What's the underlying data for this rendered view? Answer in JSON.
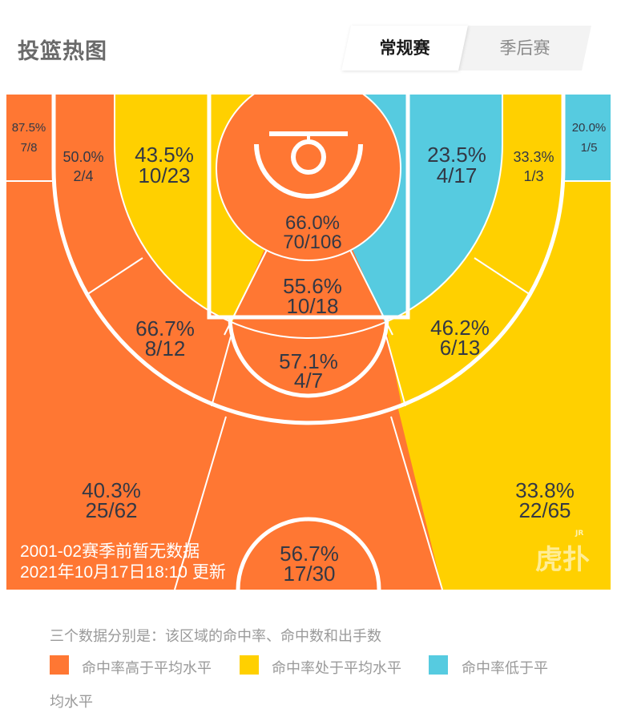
{
  "header": {
    "title": "投篮热图",
    "tabs": [
      {
        "label": "常规赛",
        "active": true
      },
      {
        "label": "季后赛",
        "active": false
      }
    ]
  },
  "colors": {
    "above": "#FF7733",
    "average": "#FFD000",
    "below": "#56CBE0",
    "text": "#333845"
  },
  "chart_data": {
    "type": "heatmap",
    "title": "投篮热图",
    "zones": [
      {
        "zone": "left-corner-3",
        "pct": "87.5%",
        "made_att": "7/8",
        "level": "above"
      },
      {
        "zone": "left-baseline-mid",
        "pct": "50.0%",
        "made_att": "2/4",
        "level": "above"
      },
      {
        "zone": "left-short-mid",
        "pct": "43.5%",
        "made_att": "10/23",
        "level": "average"
      },
      {
        "zone": "restricted-area",
        "pct": "66.0%",
        "made_att": "70/106",
        "level": "above"
      },
      {
        "zone": "right-short-mid",
        "pct": "23.5%",
        "made_att": "4/17",
        "level": "below"
      },
      {
        "zone": "right-baseline-mid",
        "pct": "33.3%",
        "made_att": "1/3",
        "level": "average"
      },
      {
        "zone": "right-corner-3",
        "pct": "20.0%",
        "made_att": "1/5",
        "level": "below"
      },
      {
        "zone": "paint",
        "pct": "55.6%",
        "made_att": "10/18",
        "level": "above"
      },
      {
        "zone": "left-wing-mid",
        "pct": "66.7%",
        "made_att": "8/12",
        "level": "above"
      },
      {
        "zone": "top-mid",
        "pct": "57.1%",
        "made_att": "4/7",
        "level": "above"
      },
      {
        "zone": "right-wing-mid",
        "pct": "46.2%",
        "made_att": "6/13",
        "level": "average"
      },
      {
        "zone": "left-wing-3",
        "pct": "40.3%",
        "made_att": "25/62",
        "level": "above"
      },
      {
        "zone": "top-3",
        "pct": "56.7%",
        "made_att": "17/30",
        "level": "above"
      },
      {
        "zone": "right-wing-3",
        "pct": "33.8%",
        "made_att": "22/65",
        "level": "average"
      }
    ]
  },
  "overlay": {
    "no_data": "2001-02赛季前暂无数据",
    "updated": "2021年10月17日18:10 更新",
    "logo": "虎扑",
    "logo_badge": "JR"
  },
  "legend": {
    "note": "三个数据分别是：该区域的命中率、命中数和出手数",
    "items": [
      {
        "label": "命中率高于平均水平"
      },
      {
        "label": "命中率处于平均水平"
      },
      {
        "label": "命中率低于平"
      }
    ],
    "wrap": "均水平"
  }
}
